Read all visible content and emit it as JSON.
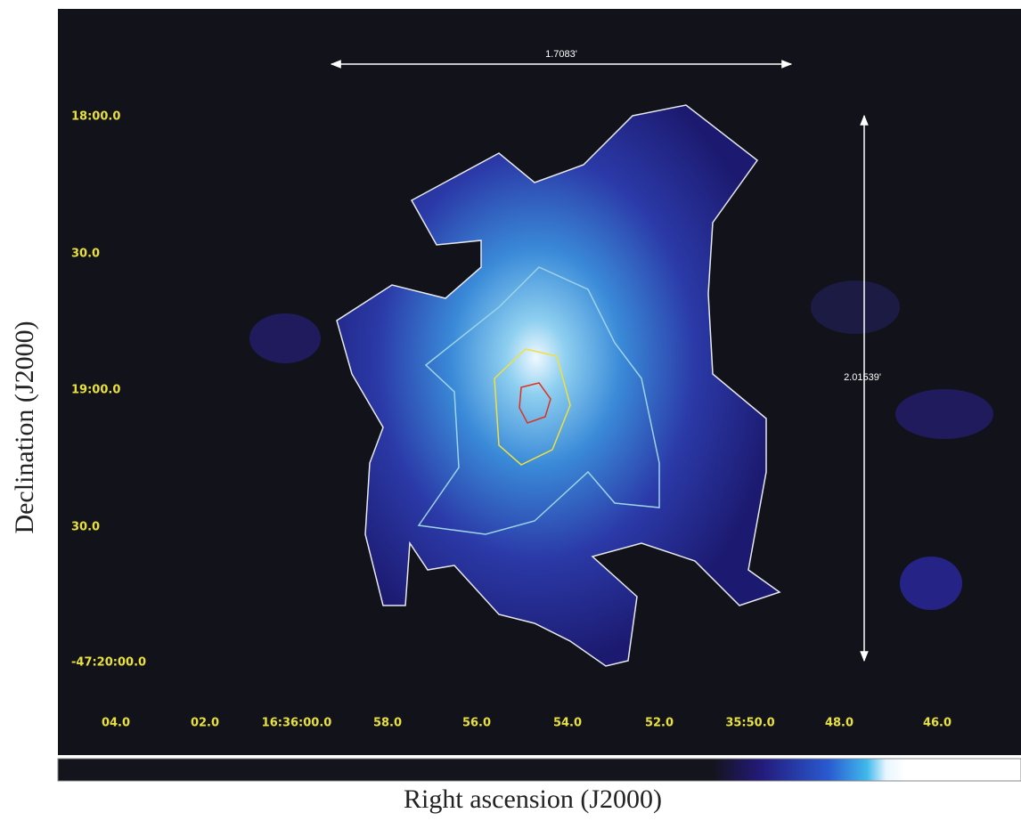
{
  "image": {
    "x_label": "Right ascension (J2000)",
    "y_label": "Declination (J2000)",
    "x_ticks": [
      "04.0",
      "02.0",
      "16:36:00.0",
      "58.0",
      "56.0",
      "54.0",
      "52.0",
      "35:50.0",
      "48.0",
      "46.0"
    ],
    "y_ticks": [
      "18:00.0",
      "30.0",
      "19:00.0",
      "30.0",
      "-47:20:00.0"
    ],
    "annotations": [
      "1.7083'",
      "2.01539'"
    ]
  }
}
